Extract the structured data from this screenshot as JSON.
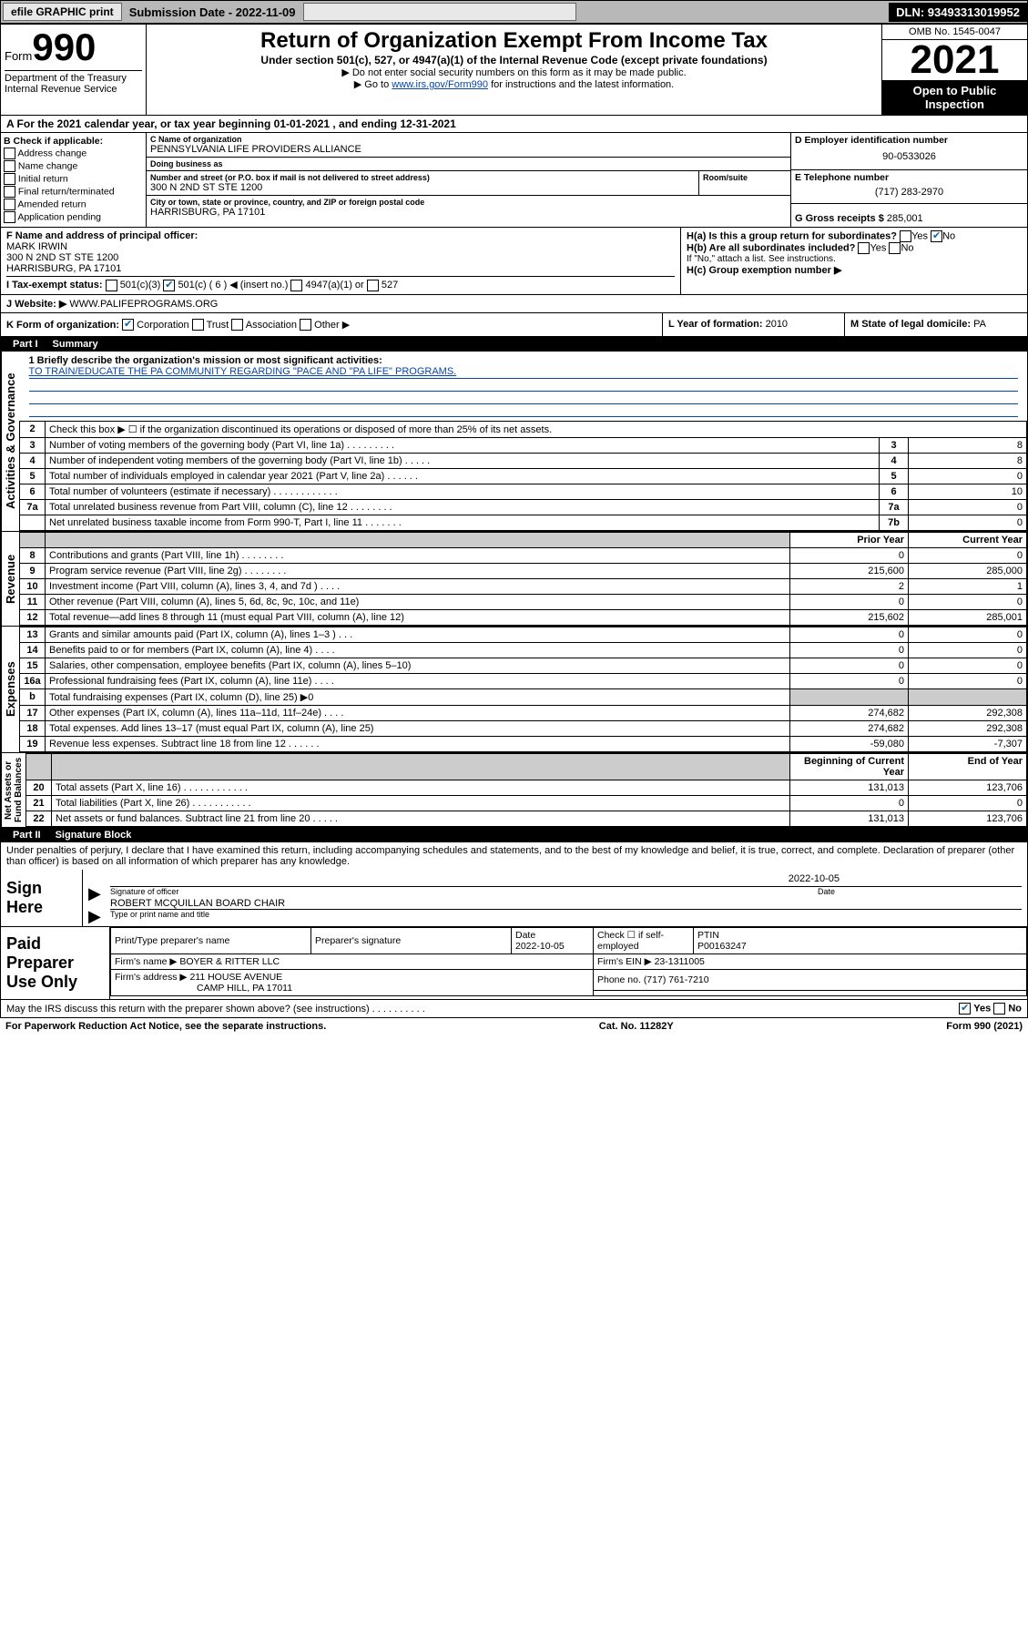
{
  "topbar": {
    "efile": "efile GRAPHIC print",
    "submission_label": "Submission Date - 2022-11-09",
    "dln": "DLN: 93493313019952"
  },
  "header": {
    "form_prefix": "Form",
    "form_number": "990",
    "dept": "Department of the Treasury Internal Revenue Service",
    "title": "Return of Organization Exempt From Income Tax",
    "subtitle": "Under section 501(c), 527, or 4947(a)(1) of the Internal Revenue Code (except private foundations)",
    "note1": "▶ Do not enter social security numbers on this form as it may be made public.",
    "note2_pre": "▶ Go to ",
    "note2_link": "www.irs.gov/Form990",
    "note2_post": " for instructions and the latest information.",
    "omb": "OMB No. 1545-0047",
    "year": "2021",
    "open": "Open to Public Inspection"
  },
  "row_a": "A For the 2021 calendar year, or tax year beginning 01-01-2021   , and ending 12-31-2021",
  "col_b": {
    "header": "B Check if applicable:",
    "items": [
      "Address change",
      "Name change",
      "Initial return",
      "Final return/terminated",
      "Amended return",
      "Application pending"
    ]
  },
  "col_c": {
    "name_label": "C Name of organization",
    "name": "PENNSYLVANIA LIFE PROVIDERS ALLIANCE",
    "dba_label": "Doing business as",
    "dba": "",
    "addr_label": "Number and street (or P.O. box if mail is not delivered to street address)",
    "room_label": "Room/suite",
    "addr": "300 N 2ND ST STE 1200",
    "city_label": "City or town, state or province, country, and ZIP or foreign postal code",
    "city": "HARRISBURG, PA  17101"
  },
  "col_d": {
    "ein_label": "D Employer identification number",
    "ein": "90-0533026",
    "phone_label": "E Telephone number",
    "phone": "(717) 283-2970",
    "gross_label": "G Gross receipts $",
    "gross": "285,001"
  },
  "section_f": {
    "label": "F Name and address of principal officer:",
    "name": "MARK IRWIN",
    "addr1": "300 N 2ND ST STE 1200",
    "addr2": "HARRISBURG, PA  17101"
  },
  "section_h": {
    "ha": "H(a)  Is this a group return for subordinates?",
    "ha_yes": "Yes",
    "ha_no": "No",
    "hb": "H(b)  Are all subordinates included?",
    "hb_note": "If \"No,\" attach a list. See instructions.",
    "hc": "H(c)  Group exemption number ▶"
  },
  "row_i": {
    "label": "I  Tax-exempt status:",
    "opt1": "501(c)(3)",
    "opt2": "501(c) ( 6 ) ◀ (insert no.)",
    "opt3": "4947(a)(1) or",
    "opt4": "527"
  },
  "row_j": {
    "label": "J  Website: ▶",
    "site": "WWW.PALIFEPROGRAMS.ORG"
  },
  "row_k": {
    "klabel": "K Form of organization:",
    "corp": "Corporation",
    "trust": "Trust",
    "assoc": "Association",
    "other": "Other ▶",
    "lyear_label": "L Year of formation:",
    "lyear": "2010",
    "mstate_label": "M State of legal domicile:",
    "mstate": "PA"
  },
  "part1": {
    "num": "Part I",
    "title": "Summary"
  },
  "mission": {
    "q1": "1  Briefly describe the organization's mission or most significant activities:",
    "text": "TO TRAIN/EDUCATE THE PA COMMUNITY REGARDING \"PACE AND \"PA LIFE\" PROGRAMS."
  },
  "gov": {
    "q2": "Check this box ▶ ☐  if the organization discontinued its operations or disposed of more than 25% of its net assets.",
    "rows": [
      {
        "n": "3",
        "t": "Number of voting members of the governing body (Part VI, line 1a)  .    .    .    .    .    .    .    .    .",
        "b": "3",
        "v": "8"
      },
      {
        "n": "4",
        "t": "Number of independent voting members of the governing body (Part VI, line 1b)  .    .    .    .    .",
        "b": "4",
        "v": "8"
      },
      {
        "n": "5",
        "t": "Total number of individuals employed in calendar year 2021 (Part V, line 2a)  .    .    .    .    .    .",
        "b": "5",
        "v": "0"
      },
      {
        "n": "6",
        "t": "Total number of volunteers (estimate if necessary)  .    .    .    .    .    .    .    .    .    .    .    .",
        "b": "6",
        "v": "10"
      },
      {
        "n": "7a",
        "t": "Total unrelated business revenue from Part VIII, column (C), line 12  .    .    .    .    .    .    .    .",
        "b": "7a",
        "v": "0"
      },
      {
        "n": "",
        "t": "Net unrelated business taxable income from Form 990-T, Part I, line 11  .    .    .    .    .    .    .",
        "b": "7b",
        "v": "0"
      }
    ]
  },
  "rev": {
    "hdr_prior": "Prior Year",
    "hdr_curr": "Current Year",
    "rows": [
      {
        "n": "8",
        "t": "Contributions and grants (Part VIII, line 1h)  .    .    .    .    .    .    .    .",
        "p": "0",
        "c": "0"
      },
      {
        "n": "9",
        "t": "Program service revenue (Part VIII, line 2g)  .    .    .    .    .    .    .    .",
        "p": "215,600",
        "c": "285,000"
      },
      {
        "n": "10",
        "t": "Investment income (Part VIII, column (A), lines 3, 4, and 7d )  .    .    .    .",
        "p": "2",
        "c": "1"
      },
      {
        "n": "11",
        "t": "Other revenue (Part VIII, column (A), lines 5, 6d, 8c, 9c, 10c, and 11e)",
        "p": "0",
        "c": "0"
      },
      {
        "n": "12",
        "t": "Total revenue—add lines 8 through 11 (must equal Part VIII, column (A), line 12)",
        "p": "215,602",
        "c": "285,001"
      }
    ]
  },
  "exp": {
    "rows": [
      {
        "n": "13",
        "t": "Grants and similar amounts paid (Part IX, column (A), lines 1–3 )  .    .    .",
        "p": "0",
        "c": "0"
      },
      {
        "n": "14",
        "t": "Benefits paid to or for members (Part IX, column (A), line 4)  .    .    .    .",
        "p": "0",
        "c": "0"
      },
      {
        "n": "15",
        "t": "Salaries, other compensation, employee benefits (Part IX, column (A), lines 5–10)",
        "p": "0",
        "c": "0"
      },
      {
        "n": "16a",
        "t": "Professional fundraising fees (Part IX, column (A), line 11e)  .    .    .    .",
        "p": "0",
        "c": "0"
      },
      {
        "n": "b",
        "t": "Total fundraising expenses (Part IX, column (D), line 25) ▶0",
        "p": "",
        "c": "",
        "shade": true
      },
      {
        "n": "17",
        "t": "Other expenses (Part IX, column (A), lines 11a–11d, 11f–24e)  .    .    .    .",
        "p": "274,682",
        "c": "292,308"
      },
      {
        "n": "18",
        "t": "Total expenses. Add lines 13–17 (must equal Part IX, column (A), line 25)",
        "p": "274,682",
        "c": "292,308"
      },
      {
        "n": "19",
        "t": "Revenue less expenses. Subtract line 18 from line 12  .    .    .    .    .    .",
        "p": "-59,080",
        "c": "-7,307"
      }
    ]
  },
  "net": {
    "hdr_beg": "Beginning of Current Year",
    "hdr_end": "End of Year",
    "rows": [
      {
        "n": "20",
        "t": "Total assets (Part X, line 16)  .    .    .    .    .    .    .    .    .    .    .    .",
        "p": "131,013",
        "c": "123,706"
      },
      {
        "n": "21",
        "t": "Total liabilities (Part X, line 26)  .    .    .    .    .    .    .    .    .    .    .",
        "p": "0",
        "c": "0"
      },
      {
        "n": "22",
        "t": "Net assets or fund balances. Subtract line 21 from line 20  .    .    .    .    .",
        "p": "131,013",
        "c": "123,706"
      }
    ]
  },
  "part2": {
    "num": "Part II",
    "title": "Signature Block"
  },
  "sig": {
    "decl": "Under penalties of perjury, I declare that I have examined this return, including accompanying schedules and statements, and to the best of my knowledge and belief, it is true, correct, and complete. Declaration of preparer (other than officer) is based on all information of which preparer has any knowledge.",
    "here": "Sign Here",
    "officer_cap": "Signature of officer",
    "date_cap": "Date",
    "date": "2022-10-05",
    "name": "ROBERT MCQUILLAN  BOARD CHAIR",
    "name_cap": "Type or print name and title"
  },
  "prep": {
    "title": "Paid Preparer Use Only",
    "h1": "Print/Type preparer's name",
    "h2": "Preparer's signature",
    "h3": "Date",
    "h4": "Check ☐ if self-employed",
    "h5": "PTIN",
    "date": "2022-10-05",
    "ptin": "P00163247",
    "firm_label": "Firm's name    ▶",
    "firm": "BOYER & RITTER LLC",
    "ein_label": "Firm's EIN ▶",
    "ein": "23-1311005",
    "addr_label": "Firm's address ▶",
    "addr1": "211 HOUSE AVENUE",
    "addr2": "CAMP HILL, PA  17011",
    "phone_label": "Phone no.",
    "phone": "(717) 761-7210"
  },
  "footer": {
    "q": "May the IRS discuss this return with the preparer shown above? (see instructions)  .    .    .    .    .    .    .    .    .    .",
    "yes": "Yes",
    "no": "No",
    "pra": "For Paperwork Reduction Act Notice, see the separate instructions.",
    "cat": "Cat. No. 11282Y",
    "form": "Form 990 (2021)"
  }
}
